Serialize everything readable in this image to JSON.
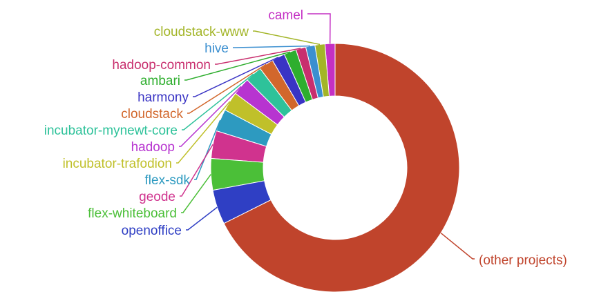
{
  "chart_data": {
    "type": "pie",
    "donut": true,
    "slices": [
      {
        "label": "camel",
        "value": 1.3,
        "color": "#c430c4"
      },
      {
        "label": "cloudstack-www",
        "value": 1.3,
        "color": "#a3b528"
      },
      {
        "label": "hive",
        "value": 1.2,
        "color": "#3b8fd0"
      },
      {
        "label": "hadoop-common",
        "value": 1.3,
        "color": "#c82f6e"
      },
      {
        "label": "ambari",
        "value": 1.6,
        "color": "#2eae2e"
      },
      {
        "label": "harmony",
        "value": 1.7,
        "color": "#3a34c4"
      },
      {
        "label": "cloudstack",
        "value": 1.9,
        "color": "#d2672c"
      },
      {
        "label": "incubator-mynewt-core",
        "value": 2.2,
        "color": "#2ec29a"
      },
      {
        "label": "hadoop",
        "value": 2.3,
        "color": "#b734d0"
      },
      {
        "label": "incubator-trafodion",
        "value": 2.5,
        "color": "#c0c02a"
      },
      {
        "label": "flex-sdk",
        "value": 2.9,
        "color": "#2d9ac0"
      },
      {
        "label": "geode",
        "value": 3.6,
        "color": "#d0338e"
      },
      {
        "label": "flex-whiteboard",
        "value": 4.1,
        "color": "#4bbf38"
      },
      {
        "label": "openoffice",
        "value": 4.5,
        "color": "#2f3fc4"
      },
      {
        "label": "(other projects)",
        "value": 67.6,
        "color": "#c0442c"
      }
    ],
    "legend": "none"
  }
}
